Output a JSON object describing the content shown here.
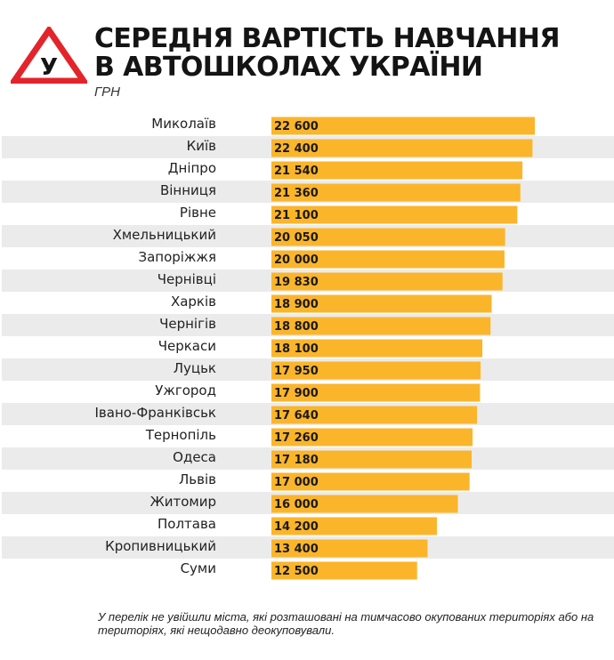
{
  "header": {
    "logo_letter": "У",
    "title_line1": "СЕРЕДНЯ ВАРТІСТЬ НАВЧАННЯ",
    "title_line2": "В АВТОШКОЛАХ УКРАЇНИ",
    "unit": "ГРН"
  },
  "colors": {
    "bar": "#fbb52b",
    "stripe": "#ebebeb",
    "logo_red": "#e3242b"
  },
  "chart_data": {
    "type": "bar",
    "orientation": "horizontal",
    "title": "СЕРЕДНЯ ВАРТІСТЬ НАВЧАННЯ В АВТОШКОЛАХ УКРАЇНИ",
    "unit": "ГРН",
    "categories": [
      "Миколаїв",
      "Київ",
      "Дніпро",
      "Вінниця",
      "Рівне",
      "Хмельницький",
      "Запоріжжя",
      "Чернівці",
      "Харків",
      "Чернігів",
      "Черкаси",
      "Луцьк",
      "Ужгород",
      "Івано-Франківськ",
      "Тернопіль",
      "Одеса",
      "Львів",
      "Житомир",
      "Полтава",
      "Кропивницький",
      "Суми"
    ],
    "values": [
      22600,
      22400,
      21540,
      21360,
      21100,
      20050,
      20000,
      19830,
      18900,
      18800,
      18100,
      17950,
      17900,
      17640,
      17260,
      17180,
      17000,
      16000,
      14200,
      13400,
      12500
    ],
    "labels": [
      "22 600",
      "22 400",
      "21 540",
      "21 360",
      "21 100",
      "20 050",
      "20 000",
      "19 830",
      "18 900",
      "18 800",
      "18 100",
      "17 950",
      "17 900",
      "17 640",
      "17 260",
      "17 180",
      "17 000",
      "16 000",
      "14 200",
      "13 400",
      "12 500"
    ]
  },
  "footnote": "У перелік не увійшли міста, які розташовані на тимчасово окупованих територіях або на територіях, які нещодавно деокуповували."
}
